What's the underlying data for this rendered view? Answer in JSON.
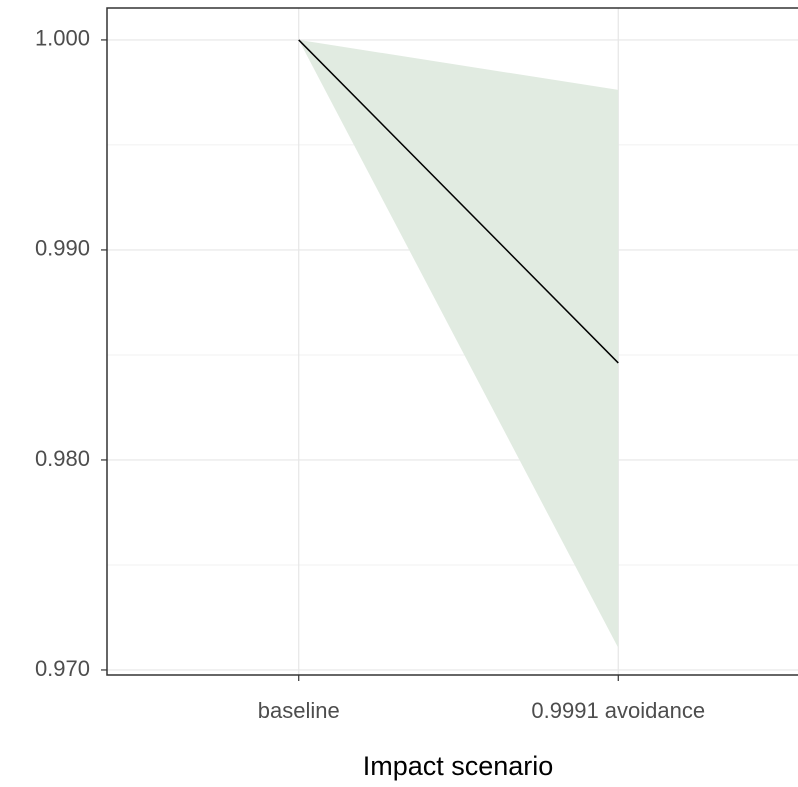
{
  "chart_data": {
    "type": "line",
    "x_label": "Impact scenario",
    "categories": [
      "baseline",
      "0.9991 avoidance"
    ],
    "series": [
      {
        "values": [
          1.0,
          0.98462
        ],
        "lower": [
          1.0,
          0.97105
        ],
        "upper": [
          1.0,
          0.99762
        ],
        "color": "#000000",
        "fill_color": "#e1ebe1"
      }
    ],
    "ylim": [
      0.96976,
      1.00152
    ],
    "yticks": [
      {
        "value": 0.97,
        "label": "0.970"
      },
      {
        "value": 0.98,
        "label": "0.980"
      },
      {
        "value": 0.99,
        "label": "0.990"
      },
      {
        "value": 1.0,
        "label": "1.000"
      }
    ],
    "y_minor_ticks": [
      0.975,
      0.985,
      0.995
    ],
    "grid": true
  }
}
